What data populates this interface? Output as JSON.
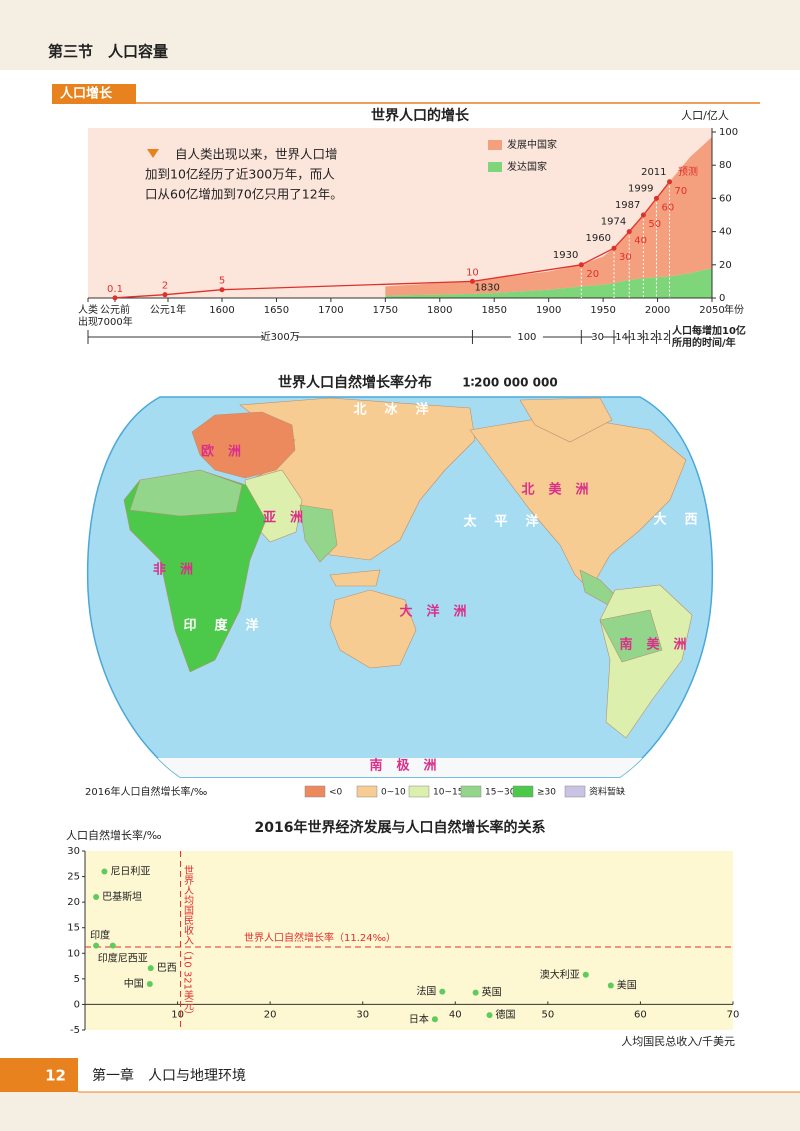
{
  "header": {
    "title": "第三节　人口容量"
  },
  "section": {
    "label": "人口增长"
  },
  "population_chart": {
    "type": "area",
    "title": "世界人口的增长",
    "y_label": "人口/亿人",
    "x_label": "年份",
    "note": [
      "自人类出现以来，世界人口增",
      "加到10亿经历了近300万年，而人",
      "口从60亿增加到70亿只用了12年。"
    ],
    "early_x_labels": [
      [
        "人类",
        "出现"
      ],
      [
        "公元前",
        "7000年"
      ],
      [
        "公元1年"
      ]
    ],
    "xlim": [
      1600,
      2050
    ],
    "xticks": [
      1600,
      1650,
      1700,
      1750,
      1800,
      1850,
      1900,
      1950,
      2000,
      2050
    ],
    "ylim": [
      0,
      100
    ],
    "yticks": [
      0,
      20,
      40,
      60,
      80,
      100
    ],
    "x": [
      1750,
      1800,
      1830,
      1850,
      1900,
      1930,
      1950,
      1960,
      1974,
      1987,
      1999,
      2011,
      2030,
      2050
    ],
    "series": [
      {
        "name": "发展中国家",
        "color": "#f4a07e",
        "values": [
          5.5,
          7,
          7.5,
          9,
          11,
          13,
          17,
          21,
          29,
          38,
          47.5,
          57,
          70,
          79
        ]
      },
      {
        "name": "发达国家",
        "color": "#7fd67a",
        "values": [
          1.5,
          2,
          2.5,
          3,
          5,
          7,
          8,
          9,
          11,
          12,
          12.5,
          13,
          15,
          18
        ]
      }
    ],
    "milestones": {
      "x": [
        null,
        null,
        1600,
        1830,
        1930,
        1960,
        1974,
        1987,
        1999,
        2011
      ],
      "values": [
        0.1,
        2,
        5,
        10,
        20,
        30,
        40,
        50,
        60,
        70
      ],
      "color": "#e0302a"
    },
    "forecast_label": "预测",
    "intervals": {
      "labels": [
        "近300万",
        100,
        30,
        14,
        13,
        12,
        12
      ],
      "caption": [
        "人口每增加10亿",
        "所用的时间/年"
      ]
    }
  },
  "map": {
    "title": "世界人口自然增长率分布",
    "scale": "1∶200 000 000",
    "labels": [
      "北冰洋",
      "欧洲",
      "亚洲",
      "非洲",
      "北美洲",
      "南美洲",
      "大洋洲",
      "南极洲",
      "太平洋",
      "大西洋",
      "印度洋"
    ],
    "legend": {
      "title": "2016年人口自然增长率/‰",
      "items": [
        {
          "label": "<0",
          "color": "#ec8a5e"
        },
        {
          "label": "0~10",
          "color": "#f7cc92"
        },
        {
          "label": "10~15",
          "color": "#dcefad"
        },
        {
          "label": "15~30",
          "color": "#93d68b"
        },
        {
          "label": "≥30",
          "color": "#4cc84a"
        },
        {
          "label": "资料暂缺",
          "color": "#cbc3e3"
        }
      ]
    }
  },
  "scatter_chart": {
    "type": "scatter",
    "title": "2016年世界经济发展与人口自然增长率的关系",
    "y_label": "人口自然增长率/‰",
    "x_label": "人均国民总收入/千美元",
    "xlim": [
      0,
      70
    ],
    "xticks": [
      10,
      20,
      30,
      40,
      50,
      60,
      70
    ],
    "ylim": [
      -5,
      30
    ],
    "yticks": [
      -5,
      0,
      5,
      10,
      15,
      20,
      25,
      30
    ],
    "color": "#5ccc5c",
    "points": {
      "labels": [
        "尼日利亚",
        "巴基斯坦",
        "印度",
        "印度尼西亚",
        "巴西",
        "中国",
        "法国",
        "英国",
        "日本",
        "德国",
        "澳大利亚",
        "美国"
      ],
      "x": [
        2.1,
        1.2,
        1.2,
        3.0,
        7.1,
        7.0,
        38.6,
        42.2,
        37.8,
        43.7,
        54.1,
        56.8
      ],
      "values": [
        26,
        21,
        11.5,
        11.5,
        7.1,
        4,
        2.5,
        2.3,
        -2.9,
        -2.1,
        5.8,
        3.7
      ]
    },
    "ref_lines": [
      {
        "axis": "y",
        "value": 11.24,
        "label": "世界人口自然增长率（11.24‰）"
      },
      {
        "axis": "x",
        "value": 10.321,
        "label": "世界人均国民收入（10 321美元）"
      }
    ],
    "ref_color": "#e03030"
  },
  "footer": {
    "page": 12,
    "chapter": "第一章　人口与地理环境"
  }
}
